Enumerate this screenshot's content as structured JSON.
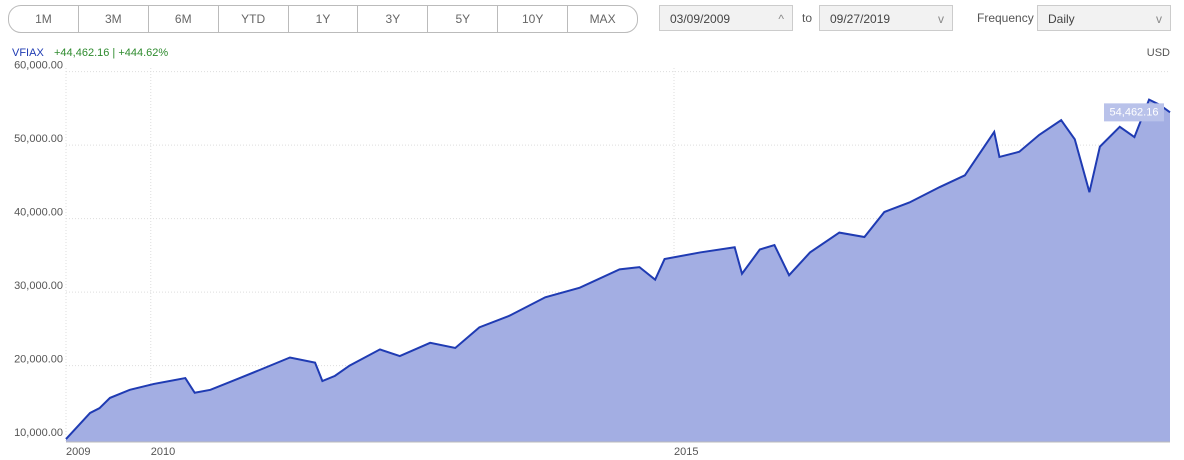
{
  "controls": {
    "ranges": [
      "1M",
      "3M",
      "6M",
      "YTD",
      "1Y",
      "3Y",
      "5Y",
      "10Y",
      "MAX"
    ],
    "start_date": "03/09/2009",
    "to": "to",
    "end_date": "09/27/2019",
    "frequency_label": "Frequency",
    "frequency": "Daily"
  },
  "chart_data": {
    "type": "area",
    "change": "+44,462.16 | +444.62%",
    "currency": "USD",
    "series": [
      {
        "name": "VFIAX",
        "color": "#1f3bb3",
        "fill": "#a3aee3",
        "x": [
          2009.19,
          2009.42,
          2009.51,
          2009.61,
          2009.8,
          2010.03,
          2010.33,
          2010.42,
          2010.57,
          2010.85,
          2011.04,
          2011.33,
          2011.57,
          2011.64,
          2011.76,
          2011.9,
          2012.19,
          2012.38,
          2012.67,
          2012.91,
          2013.14,
          2013.43,
          2013.77,
          2014.1,
          2014.48,
          2014.67,
          2014.82,
          2014.91,
          2015.25,
          2015.58,
          2015.65,
          2015.82,
          2015.96,
          2016.1,
          2016.3,
          2016.58,
          2016.82,
          2017.01,
          2017.25,
          2017.54,
          2017.78,
          2018.06,
          2018.11,
          2018.3,
          2018.49,
          2018.7,
          2018.83,
          2018.97,
          2019.07,
          2019.26,
          2019.4,
          2019.54,
          2019.64,
          2019.74
        ],
        "values": [
          10000,
          13550,
          14200,
          15600,
          16700,
          17500,
          18300,
          16300,
          16700,
          18300,
          19400,
          21100,
          20400,
          17900,
          18600,
          20000,
          22200,
          21300,
          23100,
          22400,
          25200,
          26800,
          29300,
          30600,
          33100,
          33400,
          31700,
          34500,
          35400,
          36100,
          32500,
          35800,
          36400,
          32300,
          35400,
          38100,
          37500,
          40900,
          42200,
          44300,
          45900,
          51800,
          48400,
          49100,
          51400,
          53400,
          50800,
          43600,
          49800,
          52500,
          51100,
          56200,
          55500,
          54462.16
        ]
      }
    ],
    "last_value": {
      "value": 54462.16,
      "label": "54,462.16"
    },
    "xlim": [
      2009.19,
      2019.74
    ],
    "xticks": [
      {
        "value": 2009.19,
        "label": "2009"
      },
      2010,
      2015
    ],
    "ylim": [
      9600,
      60500
    ],
    "yticks": [
      {
        "value": 10000,
        "label": "10,000.00"
      },
      {
        "value": 20000,
        "label": "20,000.00"
      },
      {
        "value": 30000,
        "label": "30,000.00"
      },
      {
        "value": 40000,
        "label": "40,000.00"
      },
      {
        "value": 50000,
        "label": "50,000.00"
      },
      {
        "value": 60000,
        "label": "60,000.00"
      }
    ],
    "grid": true
  }
}
